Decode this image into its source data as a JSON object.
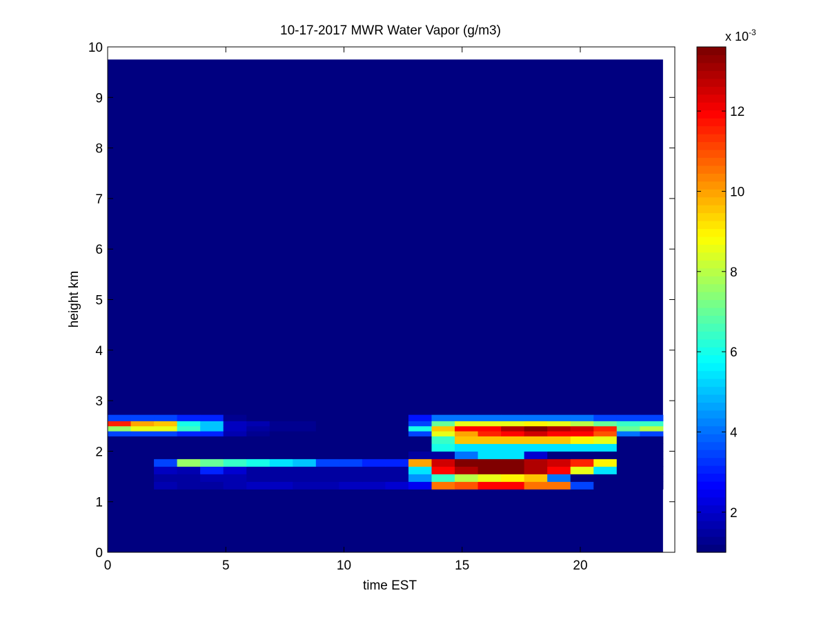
{
  "chart_data": {
    "type": "heatmap",
    "title": "10-17-2017 MWR Water Vapor (g/m3)",
    "xlabel": "time EST",
    "ylabel": "height km",
    "xlim": [
      0,
      24
    ],
    "ylim": [
      0,
      10
    ],
    "x_ticks": [
      "0",
      "5",
      "10",
      "15",
      "20"
    ],
    "x_tick_values": [
      0,
      5,
      10,
      15,
      20
    ],
    "y_ticks": [
      "0",
      "1",
      "2",
      "3",
      "4",
      "5",
      "6",
      "7",
      "8",
      "9",
      "10"
    ],
    "y_tick_values": [
      0,
      1,
      2,
      3,
      4,
      5,
      6,
      7,
      8,
      9,
      10
    ],
    "colorbar": {
      "exponent_label": "x 10",
      "exponent_power": "-3",
      "ticks": [
        "2",
        "4",
        "6",
        "8",
        "10",
        "12"
      ],
      "tick_values": [
        2,
        4,
        6,
        8,
        10,
        12
      ],
      "range": [
        1,
        13.6
      ],
      "colormap": "jet"
    },
    "grid": false,
    "data_extent": {
      "x": [
        0,
        23.5
      ],
      "y": [
        0,
        9.75
      ]
    },
    "background_value": 1.0,
    "x_start_hour": 0,
    "y_layer_bottom_km": [
      1.25,
      1.4,
      1.55,
      1.7,
      1.85,
      2.0,
      2.15,
      2.3,
      2.4,
      2.5,
      2.6
    ],
    "y_layer_top_km": [
      1.4,
      1.55,
      1.7,
      1.85,
      2.0,
      2.15,
      2.3,
      2.4,
      2.5,
      2.6,
      2.72
    ],
    "values": [
      [
        1,
        1,
        1.6,
        1.5,
        1.5,
        1.6,
        1.8,
        1.8,
        1.7,
        1.7,
        1.8,
        1.8,
        2.0,
        2.5,
        10.5,
        11.0,
        12.0,
        12.0,
        10.5,
        10.5,
        3.5,
        1,
        1,
        1
      ],
      [
        1,
        1,
        1.4,
        1.4,
        1.6,
        1.6,
        1.4,
        1.4,
        1.4,
        1.4,
        1.4,
        1.4,
        1.5,
        4.5,
        6.5,
        8.0,
        8.5,
        9.0,
        9.5,
        4.0,
        1,
        1,
        1,
        1
      ],
      [
        1,
        1,
        1.8,
        1.6,
        3.0,
        2.0,
        1.5,
        1.4,
        1.4,
        1.4,
        1.4,
        1.4,
        1.5,
        5.5,
        12.0,
        13.0,
        13.5,
        13.5,
        13.0,
        12.0,
        8.5,
        5.5,
        1,
        1
      ],
      [
        1,
        1,
        3.5,
        7.5,
        7.0,
        6.5,
        6.0,
        5.5,
        5.0,
        3.5,
        3.5,
        3.0,
        3.0,
        10.0,
        12.5,
        13.5,
        13.5,
        13.6,
        13.0,
        12.5,
        11.5,
        9.0,
        1,
        1
      ],
      [
        1,
        1,
        1,
        1,
        1,
        1,
        1,
        1,
        1,
        1,
        1,
        1,
        1,
        1.5,
        1.5,
        4.0,
        5.5,
        5.5,
        2.0,
        1,
        1,
        1,
        1,
        1
      ],
      [
        1,
        1,
        1,
        1,
        1,
        1,
        1,
        1,
        1,
        1,
        1,
        1,
        1,
        1,
        6.0,
        5.5,
        5.5,
        5.5,
        5.5,
        5.5,
        5.5,
        5.5,
        1,
        1
      ],
      [
        1,
        1,
        1,
        1,
        1,
        1,
        1,
        1,
        1,
        1,
        1,
        1,
        1,
        1,
        6.5,
        9.5,
        9.5,
        9.5,
        9.5,
        9.5,
        9.0,
        8.5,
        1,
        1
      ],
      [
        3.5,
        3.5,
        3.5,
        3.0,
        3.0,
        1.6,
        1.3,
        1.1,
        1.1,
        1.0,
        1.0,
        1.0,
        1.0,
        3.5,
        8.5,
        10.0,
        11.5,
        12.0,
        12.5,
        12.0,
        12.0,
        11.0,
        4.0,
        3.5
      ],
      [
        7.5,
        8.5,
        8.5,
        6.5,
        5.0,
        1.8,
        1.4,
        1.2,
        1.2,
        1.1,
        1.1,
        1.1,
        1.1,
        6.0,
        9.5,
        12.0,
        12.0,
        13.0,
        13.5,
        13.0,
        12.5,
        11.5,
        7.0,
        8.0
      ],
      [
        11.5,
        10.0,
        9.5,
        6.0,
        5.0,
        1.8,
        1.6,
        1.3,
        1.2,
        1.1,
        1.1,
        1.1,
        1.1,
        3.5,
        7.0,
        8.5,
        8.5,
        8.5,
        9.0,
        8.5,
        8.0,
        7.0,
        6.5,
        6.5
      ],
      [
        3.5,
        3.5,
        3.5,
        3.0,
        3.0,
        1.3,
        1.1,
        1.0,
        1.0,
        1.0,
        1.0,
        1.0,
        1.0,
        2.8,
        4.0,
        4.0,
        4.0,
        4.0,
        4.0,
        4.0,
        4.0,
        3.5,
        3.5,
        3.5
      ]
    ]
  }
}
